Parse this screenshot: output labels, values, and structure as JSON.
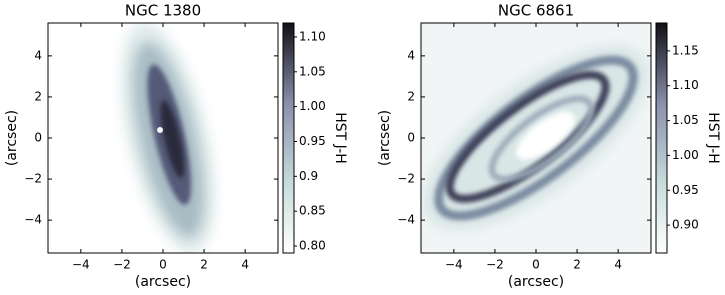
{
  "chart_data": [
    {
      "type": "image",
      "title": "NGC 1380",
      "xlabel": "(arcsec)",
      "ylabel": "(arcsec)",
      "xlim": [
        -5.6,
        5.6
      ],
      "ylim": [
        -5.6,
        5.6
      ],
      "xticks": [
        {
          "value": -4,
          "label": "−4"
        },
        {
          "value": -2,
          "label": "−2"
        },
        0,
        2,
        4
      ],
      "yticks": [
        {
          "value": -4,
          "label": "−4"
        },
        {
          "value": -2,
          "label": "−2"
        },
        0,
        2,
        4
      ],
      "colorbar": {
        "label": "HST J-H",
        "lim": [
          0.79,
          1.12
        ],
        "ticks": [
          {
            "value": 0.8,
            "label": "0.80"
          },
          0.85,
          0.9,
          0.95,
          {
            "value": 1.0,
            "label": "1.00"
          },
          1.05,
          {
            "value": 1.1,
            "label": "1.10"
          }
        ]
      }
    },
    {
      "type": "image",
      "title": "NGC 6861",
      "xlabel": "(arcsec)",
      "ylabel": "(arcsec)",
      "xlim": [
        -5.6,
        5.6
      ],
      "ylim": [
        -5.6,
        5.6
      ],
      "xticks": [
        {
          "value": -4,
          "label": "−4"
        },
        {
          "value": -2,
          "label": "−2"
        },
        0,
        2,
        4
      ],
      "yticks": [
        {
          "value": -4,
          "label": "−4"
        },
        {
          "value": -2,
          "label": "−2"
        },
        0,
        2,
        4
      ],
      "colorbar": {
        "label": "HST J-H",
        "lim": [
          0.86,
          1.19
        ],
        "ticks": [
          {
            "value": 0.9,
            "label": "0.90"
          },
          0.95,
          {
            "value": 1.0,
            "label": "1.00"
          },
          1.05,
          {
            "value": 1.1,
            "label": "1.10"
          },
          1.15
        ]
      }
    }
  ]
}
